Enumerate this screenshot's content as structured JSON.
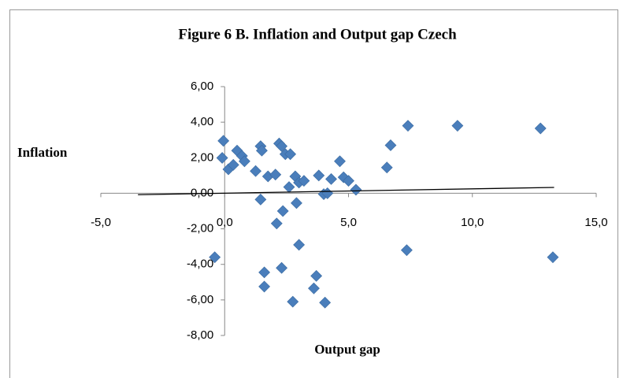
{
  "chart_data": {
    "type": "scatter",
    "title": "Figure 6 B. Inflation and Output gap Czech",
    "x_label": "Output gap",
    "y_label": "Inflation",
    "color": "#4a7ebb",
    "x": [
      -0.05,
      -0.1,
      0.15,
      0.35,
      0.5,
      0.7,
      0.8,
      1.25,
      1.45,
      1.5,
      1.45,
      1.75,
      2.05,
      2.2,
      2.3,
      2.45,
      2.65,
      2.35,
      2.1,
      2.6,
      2.85,
      2.9,
      3.0,
      3.2,
      3.0,
      2.3,
      1.6,
      1.6,
      2.75,
      3.7,
      3.6,
      4.05,
      3.8,
      4.0,
      4.15,
      4.3,
      4.65,
      4.8,
      5.0,
      5.3,
      6.55,
      6.7,
      7.4,
      7.35,
      9.4,
      12.75,
      13.25,
      -0.4
    ],
    "values": [
      2.95,
      1.99,
      1.35,
      1.6,
      2.4,
      2.1,
      1.8,
      1.25,
      2.65,
      2.4,
      -0.35,
      0.95,
      1.05,
      2.8,
      2.65,
      2.2,
      2.2,
      -1.0,
      -1.7,
      0.35,
      0.95,
      -0.55,
      0.6,
      0.7,
      -2.9,
      -4.2,
      -4.45,
      -5.25,
      -6.1,
      -4.65,
      -5.35,
      -6.15,
      1.0,
      -0.05,
      0.0,
      0.8,
      1.8,
      0.9,
      0.7,
      0.2,
      1.45,
      2.7,
      3.8,
      -3.2,
      3.8,
      3.65,
      -3.6,
      -3.6
    ],
    "trendline": {
      "x": [
        -3.5,
        13.3
      ],
      "values": [
        -0.08,
        0.33
      ]
    },
    "xlim": [
      -5,
      15
    ],
    "xticks": [
      {
        "value": -5,
        "label": "-5,0"
      },
      {
        "value": 0,
        "label": "0,0"
      },
      {
        "value": 5,
        "label": "5,0"
      },
      {
        "value": 10,
        "label": "10,0"
      },
      {
        "value": 15,
        "label": "15,0"
      }
    ],
    "ylim": [
      -8,
      6
    ],
    "yticks": [
      {
        "value": 6,
        "label": "6,00"
      },
      {
        "value": 4,
        "label": "4,00"
      },
      {
        "value": 2,
        "label": "2,00"
      },
      {
        "value": 0,
        "label": "0,00"
      },
      {
        "value": -2,
        "label": "-2,00"
      },
      {
        "value": -4,
        "label": "-4,00"
      },
      {
        "value": -6,
        "label": "-6,00"
      },
      {
        "value": -8,
        "label": "-8,00"
      }
    ]
  }
}
